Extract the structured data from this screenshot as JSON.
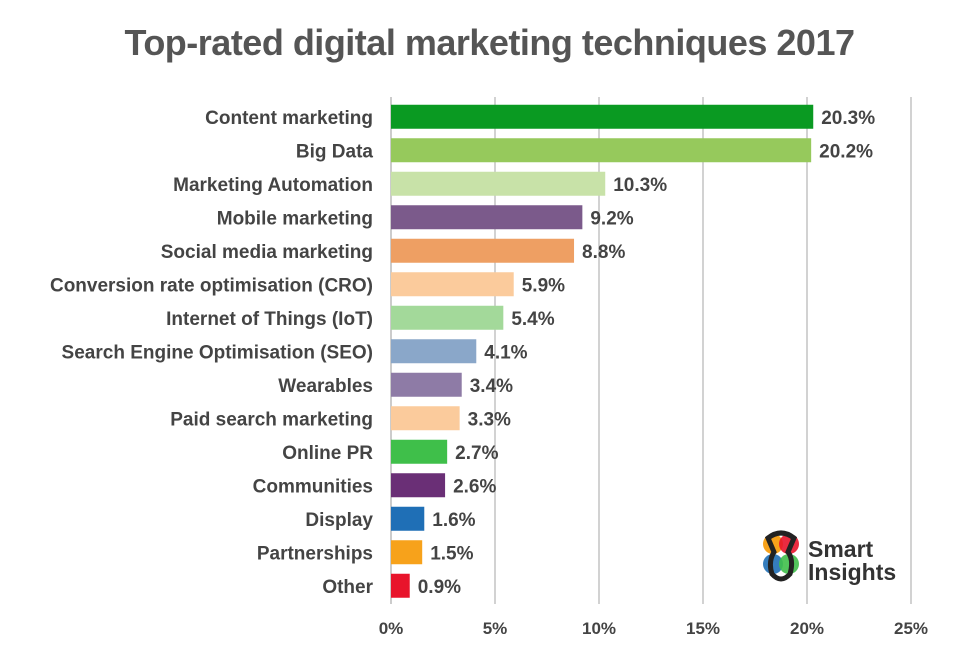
{
  "chart_data": {
    "type": "bar",
    "orientation": "horizontal",
    "title": "Top-rated digital marketing techniques 2017",
    "categories": [
      "Content marketing",
      "Big Data",
      "Marketing Automation",
      "Mobile marketing",
      "Social media marketing",
      "Conversion rate optimisation (CRO)",
      "Internet of Things (IoT)",
      "Search Engine Optimisation (SEO)",
      "Wearables",
      "Paid search marketing",
      "Online PR",
      "Communities",
      "Display",
      "Partnerships",
      "Other"
    ],
    "values": [
      20.3,
      20.2,
      10.3,
      9.2,
      8.8,
      5.9,
      5.4,
      4.1,
      3.4,
      3.3,
      2.7,
      2.6,
      1.6,
      1.5,
      0.9
    ],
    "value_labels": [
      "20.3%",
      "20.2%",
      "10.3%",
      "9.2%",
      "8.8%",
      "5.9%",
      "5.4%",
      "4.1%",
      "3.4%",
      "3.3%",
      "2.7%",
      "2.6%",
      "1.6%",
      "1.5%",
      "0.9%"
    ],
    "colors": [
      "#0a9a22",
      "#96c95c",
      "#c8e2a8",
      "#7b5a8b",
      "#ee9f63",
      "#fbcb9c",
      "#a3d99a",
      "#8aa7c9",
      "#8e7ba6",
      "#fbcb9c",
      "#3fbf4a",
      "#6a2f76",
      "#1f6fb6",
      "#f7a21b",
      "#e8142b"
    ],
    "xlim": [
      0,
      25
    ],
    "x_ticks": [
      0,
      5,
      10,
      15,
      20,
      25
    ],
    "x_tick_labels": [
      "0%",
      "5%",
      "10%",
      "15%",
      "20%",
      "25%"
    ],
    "grid": "vertical",
    "xlabel": "",
    "ylabel": ""
  },
  "logo": {
    "line1": "Smart",
    "line2": "Insights"
  }
}
